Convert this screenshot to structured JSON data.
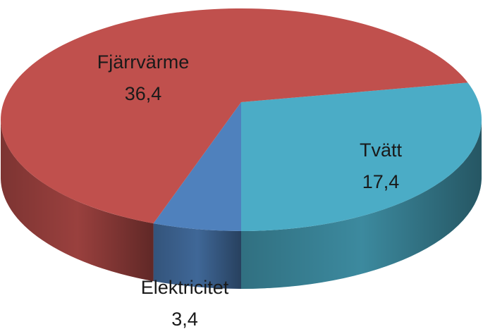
{
  "chart_data": {
    "type": "pie",
    "categories": [
      "Tvätt",
      "Elektricitet",
      "Fjärrvärme"
    ],
    "values": [
      17.4,
      3.4,
      36.4
    ],
    "value_labels": [
      "17,4",
      "3,4",
      "36,4"
    ],
    "colors": [
      "#4bacc6",
      "#4f81bd",
      "#c0504d"
    ]
  }
}
